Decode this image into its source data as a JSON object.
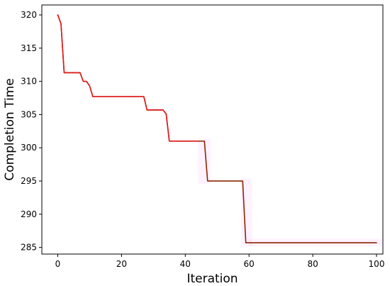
{
  "chart_data": {
    "type": "line",
    "title": "",
    "xlabel": "Iteration",
    "ylabel": "Completion Time",
    "xlim": [
      -5,
      102
    ],
    "ylim": [
      284,
      321.5
    ],
    "x_ticks": [
      0,
      20,
      40,
      60,
      80,
      100
    ],
    "y_ticks": [
      285,
      290,
      295,
      300,
      305,
      310,
      315,
      320
    ],
    "grid": false,
    "legend": "none",
    "series": [
      {
        "color": "#8b2500",
        "points": [
          [
            0,
            320
          ],
          [
            1,
            318.7
          ],
          [
            2,
            311.3
          ],
          [
            3,
            311.3
          ],
          [
            4,
            311.3
          ],
          [
            5,
            311.3
          ],
          [
            6,
            311.3
          ],
          [
            7,
            311.3
          ],
          [
            8,
            310
          ],
          [
            9,
            310
          ],
          [
            10,
            309.3
          ],
          [
            11,
            307.7
          ],
          [
            12,
            307.7
          ],
          [
            15,
            307.7
          ],
          [
            20,
            307.7
          ],
          [
            25,
            307.7
          ],
          [
            27,
            307.7
          ],
          [
            28,
            305.7
          ],
          [
            29,
            305.7
          ],
          [
            30,
            305.7
          ],
          [
            31,
            305.7
          ],
          [
            32,
            305.7
          ],
          [
            33,
            305.7
          ],
          [
            34,
            305.1
          ],
          [
            35,
            301
          ],
          [
            40,
            301
          ],
          [
            45,
            301
          ],
          [
            46,
            301
          ],
          [
            47,
            295
          ],
          [
            50,
            295
          ],
          [
            55,
            295
          ],
          [
            58,
            295
          ],
          [
            59,
            285.7
          ],
          [
            60,
            285.7
          ],
          [
            70,
            285.7
          ],
          [
            80,
            285.7
          ],
          [
            90,
            285.7
          ],
          [
            100,
            285.7
          ]
        ]
      },
      {
        "color": "#e31a1c",
        "points": [
          [
            0,
            320
          ],
          [
            1,
            318.7
          ],
          [
            2,
            311.3
          ],
          [
            3,
            311.3
          ],
          [
            4,
            311.3
          ],
          [
            5,
            311.3
          ],
          [
            6,
            311.3
          ],
          [
            7,
            311.3
          ],
          [
            8,
            310
          ],
          [
            9,
            310
          ],
          [
            10,
            309.3
          ],
          [
            11,
            307.7
          ],
          [
            12,
            307.7
          ],
          [
            15,
            307.7
          ],
          [
            20,
            307.7
          ],
          [
            25,
            307.7
          ],
          [
            27,
            307.7
          ],
          [
            28,
            305.7
          ],
          [
            29,
            305.7
          ],
          [
            30,
            305.7
          ],
          [
            31,
            305.7
          ],
          [
            32,
            305.7
          ],
          [
            33,
            305.7
          ],
          [
            34,
            305.1
          ],
          [
            35,
            301
          ],
          [
            40,
            301
          ],
          [
            44,
            301
          ]
        ]
      }
    ],
    "shaded_regions": [
      {
        "x_range": [
          44,
          48
        ],
        "y_range": [
          294.6,
          301.4
        ],
        "color": "#ff55ff"
      },
      {
        "x_range": [
          57.5,
          61
        ],
        "y_range": [
          285.2,
          295.4
        ],
        "color": "#ff55ff"
      },
      {
        "x_range": [
          60,
          102
        ],
        "y_range": [
          285.2,
          286.3
        ],
        "color": "#ff55ff"
      }
    ]
  }
}
